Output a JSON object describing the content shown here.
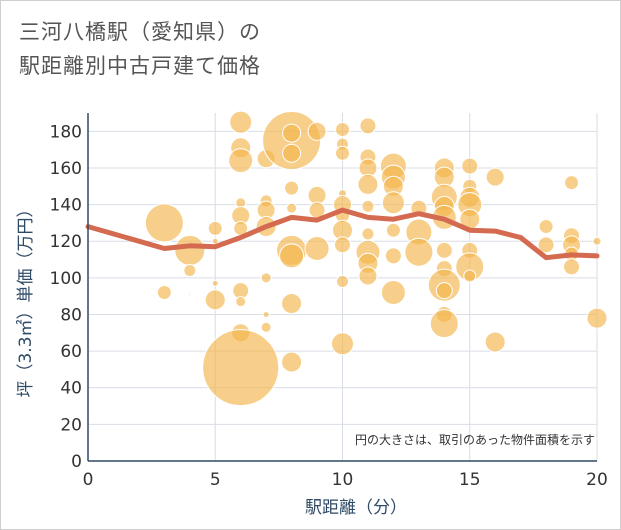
{
  "title_line1": "三河八橋駅（愛知県）の",
  "title_line2": "駅距離別中古戸建て価格",
  "chart_data": {
    "type": "scatter",
    "xlabel": "駅距離（分）",
    "ylabel": "坪（3.3㎡）単価（万円）",
    "note": "円の大きさは、取引のあった物件面積を示す",
    "xlim": [
      0,
      20
    ],
    "ylim": [
      0,
      190
    ],
    "xticks": [
      0,
      5,
      10,
      15,
      20
    ],
    "yticks": [
      0,
      20,
      40,
      60,
      80,
      100,
      120,
      140,
      160,
      180
    ],
    "grid": true,
    "colors": {
      "bubble": "#f3b64c",
      "trend": "#d46a50",
      "axis": "#2e4a66"
    },
    "points": [
      {
        "x": 3,
        "y": 92,
        "r": 7
      },
      {
        "x": 3,
        "y": 130,
        "r": 19
      },
      {
        "x": 4,
        "y": 115,
        "r": 15
      },
      {
        "x": 4,
        "y": 104,
        "r": 6
      },
      {
        "x": 4,
        "y": 91,
        "r": 1
      },
      {
        "x": 5,
        "y": 127,
        "r": 7
      },
      {
        "x": 5,
        "y": 120,
        "r": 3
      },
      {
        "x": 5,
        "y": 97,
        "r": 3
      },
      {
        "x": 5,
        "y": 88,
        "r": 10
      },
      {
        "x": 6,
        "y": 185,
        "r": 11
      },
      {
        "x": 6,
        "y": 171,
        "r": 10
      },
      {
        "x": 6,
        "y": 164,
        "r": 12
      },
      {
        "x": 6,
        "y": 141,
        "r": 5
      },
      {
        "x": 6,
        "y": 134,
        "r": 9
      },
      {
        "x": 6,
        "y": 127,
        "r": 7
      },
      {
        "x": 6,
        "y": 93,
        "r": 8
      },
      {
        "x": 6,
        "y": 87,
        "r": 5
      },
      {
        "x": 6,
        "y": 70,
        "r": 9
      },
      {
        "x": 6,
        "y": 51,
        "r": 38
      },
      {
        "x": 7,
        "y": 165,
        "r": 9
      },
      {
        "x": 7,
        "y": 142,
        "r": 6
      },
      {
        "x": 7,
        "y": 137,
        "r": 9
      },
      {
        "x": 7,
        "y": 128,
        "r": 10
      },
      {
        "x": 7,
        "y": 100,
        "r": 5
      },
      {
        "x": 7,
        "y": 80,
        "r": 3
      },
      {
        "x": 7,
        "y": 73,
        "r": 5
      },
      {
        "x": 8,
        "y": 175,
        "r": 29
      },
      {
        "x": 8,
        "y": 179,
        "r": 9
      },
      {
        "x": 8,
        "y": 168,
        "r": 9
      },
      {
        "x": 8,
        "y": 149,
        "r": 7
      },
      {
        "x": 8,
        "y": 138,
        "r": 5
      },
      {
        "x": 8,
        "y": 115,
        "r": 15
      },
      {
        "x": 8,
        "y": 112,
        "r": 12
      },
      {
        "x": 8,
        "y": 86,
        "r": 10
      },
      {
        "x": 8,
        "y": 54,
        "r": 10
      },
      {
        "x": 9,
        "y": 180,
        "r": 9
      },
      {
        "x": 9,
        "y": 145,
        "r": 9
      },
      {
        "x": 9,
        "y": 137,
        "r": 8
      },
      {
        "x": 9,
        "y": 116,
        "r": 12
      },
      {
        "x": 10,
        "y": 181,
        "r": 7
      },
      {
        "x": 10,
        "y": 173,
        "r": 6
      },
      {
        "x": 10,
        "y": 168,
        "r": 7
      },
      {
        "x": 10,
        "y": 146,
        "r": 4
      },
      {
        "x": 10,
        "y": 140,
        "r": 9
      },
      {
        "x": 10,
        "y": 134,
        "r": 7
      },
      {
        "x": 10,
        "y": 126,
        "r": 10
      },
      {
        "x": 10,
        "y": 118,
        "r": 8
      },
      {
        "x": 10,
        "y": 98,
        "r": 6
      },
      {
        "x": 10,
        "y": 64,
        "r": 11
      },
      {
        "x": 11,
        "y": 183,
        "r": 8
      },
      {
        "x": 11,
        "y": 166,
        "r": 8
      },
      {
        "x": 11,
        "y": 160,
        "r": 9
      },
      {
        "x": 11,
        "y": 151,
        "r": 10
      },
      {
        "x": 11,
        "y": 139,
        "r": 6
      },
      {
        "x": 11,
        "y": 124,
        "r": 6
      },
      {
        "x": 11,
        "y": 114,
        "r": 12
      },
      {
        "x": 11,
        "y": 108,
        "r": 10
      },
      {
        "x": 11,
        "y": 101,
        "r": 9
      },
      {
        "x": 12,
        "y": 161,
        "r": 13
      },
      {
        "x": 12,
        "y": 155,
        "r": 12
      },
      {
        "x": 12,
        "y": 150,
        "r": 10
      },
      {
        "x": 12,
        "y": 141,
        "r": 11
      },
      {
        "x": 12,
        "y": 126,
        "r": 7
      },
      {
        "x": 12,
        "y": 112,
        "r": 8
      },
      {
        "x": 12,
        "y": 92,
        "r": 12
      },
      {
        "x": 13,
        "y": 138,
        "r": 8
      },
      {
        "x": 13,
        "y": 125,
        "r": 13
      },
      {
        "x": 13,
        "y": 114,
        "r": 14
      },
      {
        "x": 14,
        "y": 160,
        "r": 10
      },
      {
        "x": 14,
        "y": 155,
        "r": 10
      },
      {
        "x": 14,
        "y": 144,
        "r": 13
      },
      {
        "x": 14,
        "y": 139,
        "r": 10
      },
      {
        "x": 14,
        "y": 133,
        "r": 12
      },
      {
        "x": 14,
        "y": 115,
        "r": 8
      },
      {
        "x": 14,
        "y": 105,
        "r": 8
      },
      {
        "x": 14,
        "y": 96,
        "r": 16
      },
      {
        "x": 14,
        "y": 93,
        "r": 8
      },
      {
        "x": 14,
        "y": 80,
        "r": 8
      },
      {
        "x": 14,
        "y": 75,
        "r": 14
      },
      {
        "x": 15,
        "y": 161,
        "r": 8
      },
      {
        "x": 15,
        "y": 150,
        "r": 7
      },
      {
        "x": 15,
        "y": 144,
        "r": 10
      },
      {
        "x": 15,
        "y": 140,
        "r": 12
      },
      {
        "x": 15,
        "y": 132,
        "r": 10
      },
      {
        "x": 15,
        "y": 115,
        "r": 8
      },
      {
        "x": 15,
        "y": 106,
        "r": 14
      },
      {
        "x": 15,
        "y": 101,
        "r": 6
      },
      {
        "x": 16,
        "y": 155,
        "r": 9
      },
      {
        "x": 16,
        "y": 65,
        "r": 10
      },
      {
        "x": 18,
        "y": 128,
        "r": 7
      },
      {
        "x": 18,
        "y": 118,
        "r": 8
      },
      {
        "x": 19,
        "y": 152,
        "r": 7
      },
      {
        "x": 19,
        "y": 123,
        "r": 8
      },
      {
        "x": 19,
        "y": 118,
        "r": 9
      },
      {
        "x": 19,
        "y": 113,
        "r": 7
      },
      {
        "x": 19,
        "y": 106,
        "r": 8
      },
      {
        "x": 20,
        "y": 120,
        "r": 4
      },
      {
        "x": 20,
        "y": 78,
        "r": 10
      }
    ],
    "trend": [
      {
        "x": 0,
        "y": 128
      },
      {
        "x": 1,
        "y": 124
      },
      {
        "x": 2,
        "y": 120
      },
      {
        "x": 3,
        "y": 116
      },
      {
        "x": 4,
        "y": 117.5
      },
      {
        "x": 5,
        "y": 117
      },
      {
        "x": 6,
        "y": 122
      },
      {
        "x": 7,
        "y": 128
      },
      {
        "x": 8,
        "y": 133
      },
      {
        "x": 9,
        "y": 131.5
      },
      {
        "x": 10,
        "y": 137
      },
      {
        "x": 11,
        "y": 133
      },
      {
        "x": 12,
        "y": 132
      },
      {
        "x": 13,
        "y": 135
      },
      {
        "x": 14,
        "y": 132
      },
      {
        "x": 15,
        "y": 126
      },
      {
        "x": 16,
        "y": 125.5
      },
      {
        "x": 17,
        "y": 122
      },
      {
        "x": 18,
        "y": 111
      },
      {
        "x": 19,
        "y": 112.5
      },
      {
        "x": 20,
        "y": 112
      }
    ]
  }
}
